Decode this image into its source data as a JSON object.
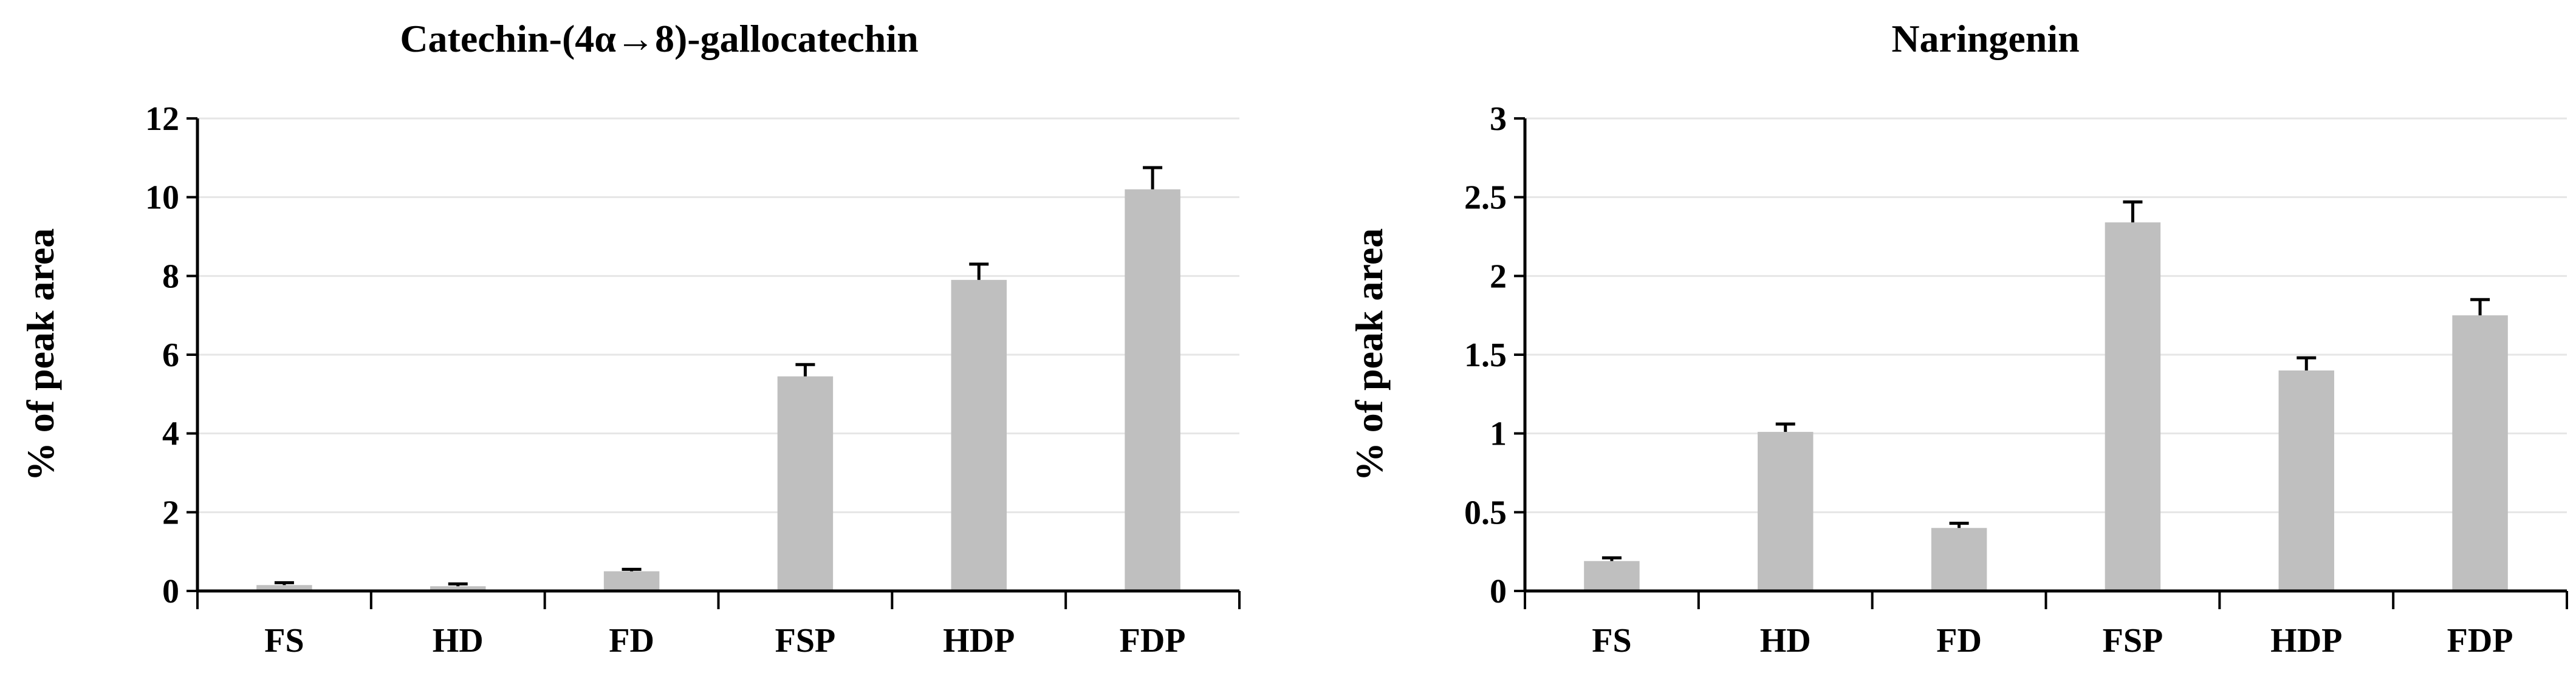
{
  "chart_data": [
    {
      "type": "bar",
      "title": "Catechin-(4α→8)-gallocatechin",
      "xlabel": "",
      "ylabel": "% of peak area",
      "ylim": [
        0,
        12
      ],
      "yticks": [
        0,
        2,
        4,
        6,
        8,
        10,
        12
      ],
      "ytick_labels": [
        "0",
        "2",
        "4",
        "6",
        "8",
        "10",
        "12"
      ],
      "grid": true,
      "categories": [
        "FS",
        "HD",
        "FD",
        "FSP",
        "HDP",
        "FDP"
      ],
      "values": [
        0.15,
        0.12,
        0.5,
        5.45,
        7.9,
        10.2
      ],
      "errors": [
        0.06,
        0.06,
        0.05,
        0.3,
        0.4,
        0.55
      ],
      "bar_color": "#bfbfbf"
    },
    {
      "type": "bar",
      "title": "Naringenin",
      "xlabel": "",
      "ylabel": "% of peak area",
      "ylim": [
        0,
        3
      ],
      "yticks": [
        0,
        0.5,
        1,
        1.5,
        2,
        2.5,
        3
      ],
      "ytick_labels": [
        "0",
        "0.5",
        "1",
        "1.5",
        "2",
        "2.5",
        "3"
      ],
      "grid": true,
      "categories": [
        "FS",
        "HD",
        "FD",
        "FSP",
        "HDP",
        "FDP"
      ],
      "values": [
        0.19,
        1.01,
        0.4,
        2.34,
        1.4,
        1.75
      ],
      "errors": [
        0.02,
        0.05,
        0.03,
        0.13,
        0.08,
        0.1
      ],
      "bar_color": "#bfbfbf"
    }
  ]
}
